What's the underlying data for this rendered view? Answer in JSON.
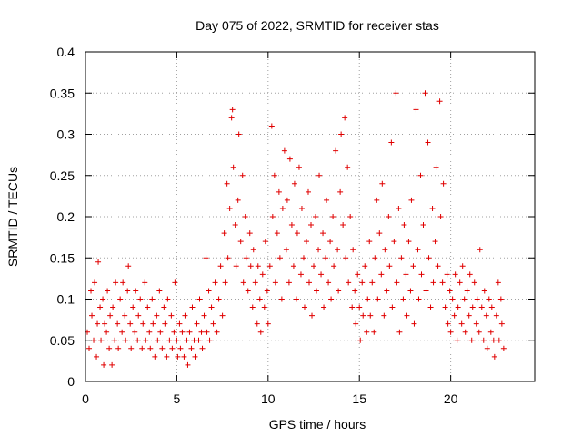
{
  "chart_data": {
    "type": "scatter",
    "title": "Day 075 of 2022, SRMTID for receiver stas",
    "xlabel": "GPS time / hours",
    "ylabel": "SRMTID / TECUs",
    "xlim": [
      0,
      24.6
    ],
    "ylim": [
      0,
      0.4
    ],
    "x_ticks": [
      0,
      5,
      10,
      15,
      20
    ],
    "x_tick_labels": [
      "0",
      "5",
      "10",
      "15",
      "20"
    ],
    "y_ticks": [
      0,
      0.05,
      0.1,
      0.15,
      0.2,
      0.25,
      0.3,
      0.35,
      0.4
    ],
    "y_tick_labels": [
      "0",
      "0.05",
      "0.1",
      "0.15",
      "0.2",
      "0.25",
      "0.3",
      "0.35",
      "0.4"
    ],
    "grid": true,
    "marker": "+",
    "series": [
      {
        "name": "SRMTID",
        "color": "#e00000",
        "points": [
          [
            0.1,
            0.06
          ],
          [
            0.2,
            0.04
          ],
          [
            0.3,
            0.11
          ],
          [
            0.35,
            0.08
          ],
          [
            0.45,
            0.05
          ],
          [
            0.5,
            0.12
          ],
          [
            0.6,
            0.03
          ],
          [
            0.65,
            0.07
          ],
          [
            0.7,
            0.145
          ],
          [
            0.8,
            0.09
          ],
          [
            0.85,
            0.05
          ],
          [
            0.95,
            0.1
          ],
          [
            1.0,
            0.02
          ],
          [
            1.05,
            0.07
          ],
          [
            1.15,
            0.06
          ],
          [
            1.2,
            0.11
          ],
          [
            1.3,
            0.04
          ],
          [
            1.35,
            0.08
          ],
          [
            1.45,
            0.02
          ],
          [
            1.5,
            0.09
          ],
          [
            1.6,
            0.05
          ],
          [
            1.65,
            0.12
          ],
          [
            1.75,
            0.07
          ],
          [
            1.8,
            0.04
          ],
          [
            1.9,
            0.1
          ],
          [
            2.0,
            0.06
          ],
          [
            2.05,
            0.12
          ],
          [
            2.15,
            0.08
          ],
          [
            2.2,
            0.05
          ],
          [
            2.3,
            0.11
          ],
          [
            2.35,
            0.14
          ],
          [
            2.45,
            0.07
          ],
          [
            2.5,
            0.04
          ],
          [
            2.6,
            0.09
          ],
          [
            2.7,
            0.06
          ],
          [
            2.75,
            0.11
          ],
          [
            2.85,
            0.05
          ],
          [
            2.9,
            0.08
          ],
          [
            3.0,
            0.1
          ],
          [
            3.1,
            0.04
          ],
          [
            3.15,
            0.07
          ],
          [
            3.25,
            0.12
          ],
          [
            3.3,
            0.05
          ],
          [
            3.4,
            0.09
          ],
          [
            3.5,
            0.06
          ],
          [
            3.55,
            0.04
          ],
          [
            3.65,
            0.1
          ],
          [
            3.7,
            0.07
          ],
          [
            3.8,
            0.03
          ],
          [
            3.9,
            0.08
          ],
          [
            3.95,
            0.05
          ],
          [
            4.05,
            0.11
          ],
          [
            4.1,
            0.06
          ],
          [
            4.2,
            0.04
          ],
          [
            4.3,
            0.09
          ],
          [
            4.35,
            0.07
          ],
          [
            4.45,
            0.03
          ],
          [
            4.5,
            0.1
          ],
          [
            4.6,
            0.05
          ],
          [
            4.7,
            0.08
          ],
          [
            4.75,
            0.04
          ],
          [
            4.85,
            0.06
          ],
          [
            4.9,
            0.12
          ],
          [
            5.0,
            0.05
          ],
          [
            5.05,
            0.03
          ],
          [
            5.15,
            0.07
          ],
          [
            5.2,
            0.04
          ],
          [
            5.3,
            0.06
          ],
          [
            5.4,
            0.03
          ],
          [
            5.45,
            0.08
          ],
          [
            5.55,
            0.05
          ],
          [
            5.6,
            0.02
          ],
          [
            5.7,
            0.06
          ],
          [
            5.8,
            0.04
          ],
          [
            5.85,
            0.09
          ],
          [
            5.95,
            0.05
          ],
          [
            6.0,
            0.03
          ],
          [
            6.1,
            0.07
          ],
          [
            6.2,
            0.05
          ],
          [
            6.25,
            0.1
          ],
          [
            6.35,
            0.06
          ],
          [
            6.4,
            0.04
          ],
          [
            6.5,
            0.08
          ],
          [
            6.6,
            0.15
          ],
          [
            6.65,
            0.06
          ],
          [
            6.75,
            0.11
          ],
          [
            6.8,
            0.05
          ],
          [
            6.9,
            0.09
          ],
          [
            7.0,
            0.07
          ],
          [
            7.1,
            0.12
          ],
          [
            7.2,
            0.06
          ],
          [
            7.3,
            0.1
          ],
          [
            7.4,
            0.14
          ],
          [
            7.5,
            0.08
          ],
          [
            7.6,
            0.18
          ],
          [
            7.65,
            0.12
          ],
          [
            7.75,
            0.24
          ],
          [
            7.8,
            0.15
          ],
          [
            7.9,
            0.21
          ],
          [
            8.0,
            0.32
          ],
          [
            8.05,
            0.33
          ],
          [
            8.1,
            0.26
          ],
          [
            8.2,
            0.19
          ],
          [
            8.25,
            0.14
          ],
          [
            8.35,
            0.22
          ],
          [
            8.4,
            0.3
          ],
          [
            8.5,
            0.17
          ],
          [
            8.6,
            0.25
          ],
          [
            8.65,
            0.12
          ],
          [
            8.75,
            0.2
          ],
          [
            8.8,
            0.15
          ],
          [
            8.9,
            0.11
          ],
          [
            9.0,
            0.18
          ],
          [
            9.05,
            0.14
          ],
          [
            9.15,
            0.09
          ],
          [
            9.2,
            0.16
          ],
          [
            9.3,
            0.12
          ],
          [
            9.4,
            0.07
          ],
          [
            9.45,
            0.14
          ],
          [
            9.55,
            0.1
          ],
          [
            9.6,
            0.06
          ],
          [
            9.7,
            0.13
          ],
          [
            9.8,
            0.09
          ],
          [
            9.85,
            0.17
          ],
          [
            9.95,
            0.11
          ],
          [
            10.0,
            0.07
          ],
          [
            10.1,
            0.14
          ],
          [
            10.2,
            0.31
          ],
          [
            10.25,
            0.2
          ],
          [
            10.35,
            0.25
          ],
          [
            10.4,
            0.12
          ],
          [
            10.5,
            0.18
          ],
          [
            10.6,
            0.23
          ],
          [
            10.65,
            0.15
          ],
          [
            10.75,
            0.1
          ],
          [
            10.8,
            0.21
          ],
          [
            10.9,
            0.28
          ],
          [
            11.0,
            0.16
          ],
          [
            11.05,
            0.22
          ],
          [
            11.15,
            0.12
          ],
          [
            11.2,
            0.27
          ],
          [
            11.3,
            0.19
          ],
          [
            11.4,
            0.14
          ],
          [
            11.45,
            0.24
          ],
          [
            11.55,
            0.1
          ],
          [
            11.6,
            0.18
          ],
          [
            11.7,
            0.26
          ],
          [
            11.8,
            0.13
          ],
          [
            11.85,
            0.21
          ],
          [
            11.95,
            0.15
          ],
          [
            12.0,
            0.09
          ],
          [
            12.1,
            0.17
          ],
          [
            12.2,
            0.23
          ],
          [
            12.25,
            0.12
          ],
          [
            12.35,
            0.19
          ],
          [
            12.4,
            0.08
          ],
          [
            12.5,
            0.14
          ],
          [
            12.6,
            0.2
          ],
          [
            12.65,
            0.11
          ],
          [
            12.75,
            0.16
          ],
          [
            12.8,
            0.25
          ],
          [
            12.9,
            0.13
          ],
          [
            13.0,
            0.18
          ],
          [
            13.05,
            0.09
          ],
          [
            13.15,
            0.15
          ],
          [
            13.2,
            0.22
          ],
          [
            13.3,
            0.12
          ],
          [
            13.4,
            0.17
          ],
          [
            13.45,
            0.1
          ],
          [
            13.55,
            0.2
          ],
          [
            13.6,
            0.14
          ],
          [
            13.7,
            0.28
          ],
          [
            13.8,
            0.16
          ],
          [
            13.85,
            0.11
          ],
          [
            13.95,
            0.23
          ],
          [
            14.0,
            0.3
          ],
          [
            14.1,
            0.19
          ],
          [
            14.2,
            0.32
          ],
          [
            14.25,
            0.15
          ],
          [
            14.35,
            0.26
          ],
          [
            14.4,
            0.12
          ],
          [
            14.5,
            0.2
          ],
          [
            14.6,
            0.09
          ],
          [
            14.65,
            0.16
          ],
          [
            14.75,
            0.11
          ],
          [
            14.8,
            0.07
          ],
          [
            14.9,
            0.13
          ],
          [
            15.0,
            0.09
          ],
          [
            15.05,
            0.05
          ],
          [
            15.15,
            0.12
          ],
          [
            15.2,
            0.08
          ],
          [
            15.3,
            0.14
          ],
          [
            15.4,
            0.06
          ],
          [
            15.45,
            0.1
          ],
          [
            15.55,
            0.17
          ],
          [
            15.6,
            0.08
          ],
          [
            15.7,
            0.12
          ],
          [
            15.8,
            0.06
          ],
          [
            15.85,
            0.15
          ],
          [
            15.95,
            0.22
          ],
          [
            16.0,
            0.1
          ],
          [
            16.1,
            0.18
          ],
          [
            16.2,
            0.13
          ],
          [
            16.25,
            0.24
          ],
          [
            16.35,
            0.08
          ],
          [
            16.4,
            0.16
          ],
          [
            16.5,
            0.11
          ],
          [
            16.6,
            0.2
          ],
          [
            16.65,
            0.14
          ],
          [
            16.75,
            0.29
          ],
          [
            16.8,
            0.09
          ],
          [
            16.9,
            0.17
          ],
          [
            17.0,
            0.35
          ],
          [
            17.05,
            0.12
          ],
          [
            17.15,
            0.21
          ],
          [
            17.2,
            0.06
          ],
          [
            17.3,
            0.15
          ],
          [
            17.4,
            0.1
          ],
          [
            17.45,
            0.19
          ],
          [
            17.55,
            0.13
          ],
          [
            17.6,
            0.08
          ],
          [
            17.7,
            0.17
          ],
          [
            17.8,
            0.11
          ],
          [
            17.85,
            0.22
          ],
          [
            17.95,
            0.14
          ],
          [
            18.0,
            0.07
          ],
          [
            18.1,
            0.33
          ],
          [
            18.2,
            0.16
          ],
          [
            18.25,
            0.1
          ],
          [
            18.35,
            0.25
          ],
          [
            18.4,
            0.13
          ],
          [
            18.5,
            0.19
          ],
          [
            18.6,
            0.35
          ],
          [
            18.65,
            0.11
          ],
          [
            18.75,
            0.29
          ],
          [
            18.8,
            0.15
          ],
          [
            18.9,
            0.09
          ],
          [
            19.0,
            0.21
          ],
          [
            19.05,
            0.12
          ],
          [
            19.15,
            0.17
          ],
          [
            19.2,
            0.26
          ],
          [
            19.3,
            0.14
          ],
          [
            19.4,
            0.34
          ],
          [
            19.45,
            0.2
          ],
          [
            19.55,
            0.12
          ],
          [
            19.6,
            0.24
          ],
          [
            19.7,
            0.09
          ],
          [
            19.8,
            0.13
          ],
          [
            19.85,
            0.07
          ],
          [
            19.95,
            0.11
          ],
          [
            20.0,
            0.06
          ],
          [
            20.1,
            0.1
          ],
          [
            20.2,
            0.08
          ],
          [
            20.25,
            0.13
          ],
          [
            20.35,
            0.05
          ],
          [
            20.4,
            0.09
          ],
          [
            20.5,
            0.12
          ],
          [
            20.6,
            0.07
          ],
          [
            20.65,
            0.14
          ],
          [
            20.75,
            0.1
          ],
          [
            20.8,
            0.06
          ],
          [
            20.9,
            0.11
          ],
          [
            21.0,
            0.08
          ],
          [
            21.05,
            0.13
          ],
          [
            21.15,
            0.05
          ],
          [
            21.2,
            0.09
          ],
          [
            21.3,
            0.12
          ],
          [
            21.4,
            0.07
          ],
          [
            21.45,
            0.1
          ],
          [
            21.55,
            0.06
          ],
          [
            21.6,
            0.16
          ],
          [
            21.7,
            0.09
          ],
          [
            21.8,
            0.05
          ],
          [
            21.85,
            0.11
          ],
          [
            21.95,
            0.08
          ],
          [
            22.0,
            0.04
          ],
          [
            22.1,
            0.1
          ],
          [
            22.2,
            0.06
          ],
          [
            22.25,
            0.09
          ],
          [
            22.35,
            0.05
          ],
          [
            22.4,
            0.03
          ],
          [
            22.5,
            0.08
          ],
          [
            22.6,
            0.12
          ],
          [
            22.65,
            0.05
          ],
          [
            22.75,
            0.1
          ],
          [
            22.8,
            0.07
          ],
          [
            22.9,
            0.04
          ]
        ]
      }
    ]
  }
}
